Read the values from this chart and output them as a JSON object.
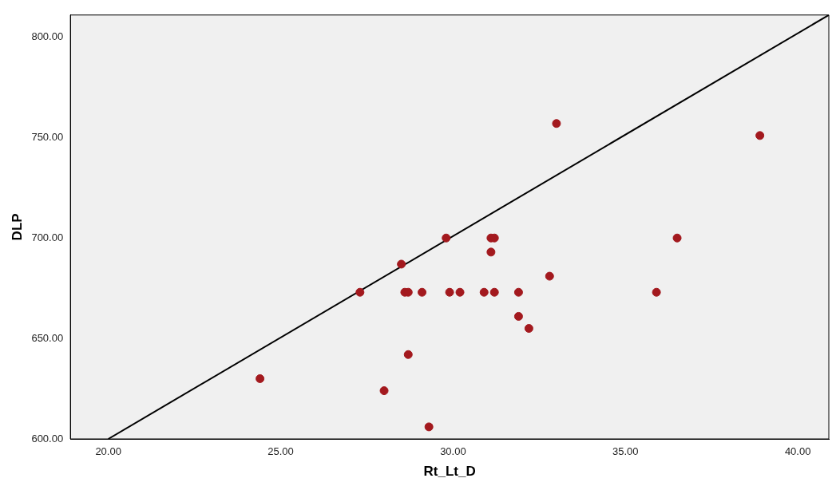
{
  "chart_data": {
    "type": "scatter",
    "xlabel": "Rt_Lt_D",
    "ylabel": "DLP",
    "xlim": [
      18.9,
      40.9
    ],
    "ylim": [
      600,
      811
    ],
    "xticks": [
      {
        "value": 20,
        "label": "20.00"
      },
      {
        "value": 25,
        "label": "25.00"
      },
      {
        "value": 30,
        "label": "30.00"
      },
      {
        "value": 35,
        "label": "35.00"
      },
      {
        "value": 40,
        "label": "40.00"
      }
    ],
    "yticks": [
      {
        "value": 600,
        "label": "600.00"
      },
      {
        "value": 650,
        "label": "650.00"
      },
      {
        "value": 700,
        "label": "700.00"
      },
      {
        "value": 750,
        "label": "750.00"
      },
      {
        "value": 800,
        "label": "800.00"
      }
    ],
    "grid": false,
    "legend": false,
    "marker": "circle",
    "series": [
      {
        "type": "scatter",
        "color": "#a3191e",
        "x": [
          24.4,
          27.3,
          28.0,
          28.5,
          28.6,
          28.7,
          28.7,
          29.1,
          29.3,
          29.8,
          29.9,
          30.2,
          30.9,
          31.1,
          31.1,
          31.2,
          31.2,
          31.9,
          31.9,
          32.2,
          32.8,
          33.0,
          35.9,
          36.5,
          38.9
        ],
        "values": [
          630,
          673,
          624,
          687,
          673,
          673,
          642,
          673,
          606,
          700,
          673,
          673,
          673,
          700,
          693,
          700,
          673,
          673,
          661,
          655,
          681,
          757,
          673,
          700,
          751
        ]
      },
      {
        "type": "line",
        "color": "#000000",
        "x": [
          20,
          40.9
        ],
        "values": [
          600,
          811
        ],
        "marker": "none"
      }
    ]
  }
}
